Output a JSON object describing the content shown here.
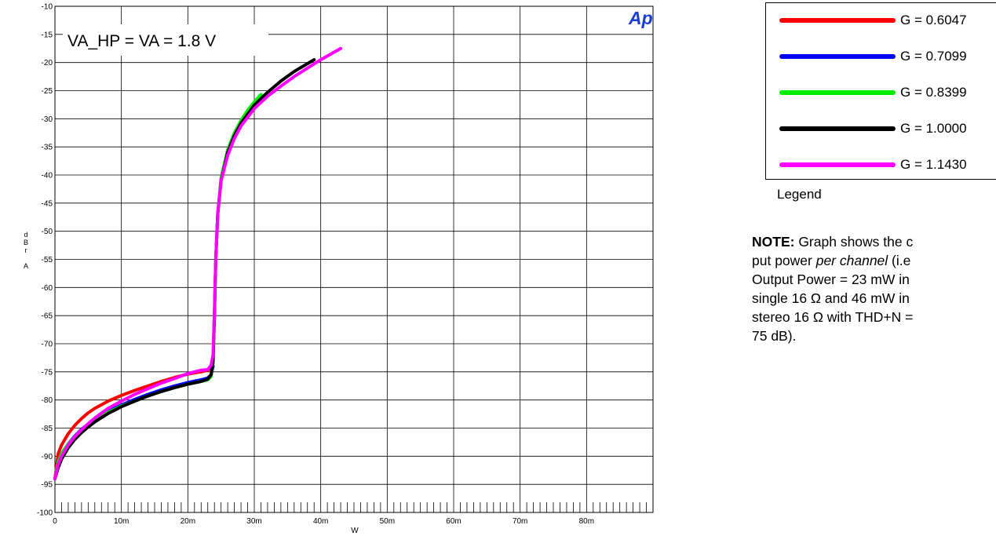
{
  "chart_data": {
    "type": "line",
    "title": "",
    "annotation": "VA_HP = VA = 1.8 V",
    "xlabel": "W",
    "ylabel": "dBr A",
    "ylabel_chars": [
      "d",
      "B",
      "r",
      "",
      "A"
    ],
    "xlim": [
      0,
      0.09
    ],
    "ylim": [
      -100,
      -10
    ],
    "x_ticks": [
      {
        "value": 0,
        "label": "0"
      },
      {
        "value": 0.01,
        "label": "10m"
      },
      {
        "value": 0.02,
        "label": "20m"
      },
      {
        "value": 0.03,
        "label": "30m"
      },
      {
        "value": 0.04,
        "label": "40m"
      },
      {
        "value": 0.05,
        "label": "50m"
      },
      {
        "value": 0.06,
        "label": "60m"
      },
      {
        "value": 0.07,
        "label": "70m"
      },
      {
        "value": 0.08,
        "label": "80m"
      }
    ],
    "y_ticks": [
      -10,
      -15,
      -20,
      -25,
      -30,
      -35,
      -40,
      -45,
      -50,
      -55,
      -60,
      -65,
      -70,
      -75,
      -80,
      -85,
      -90,
      -95,
      -100
    ],
    "grid": true,
    "logo": "Ap",
    "series": [
      {
        "name": "G = 0.6047",
        "color": "#ff0000",
        "x": [
          0,
          0.0005,
          0.001,
          0.002,
          0.003,
          0.004,
          0.005,
          0.006,
          0.008,
          0.01,
          0.012,
          0.014,
          0.016,
          0.018,
          0.02,
          0.022,
          0.023,
          0.0235,
          0.0238
        ],
        "y": [
          -94,
          -89.5,
          -88,
          -86,
          -84.5,
          -83.3,
          -82.3,
          -81.5,
          -80.2,
          -79.2,
          -78.3,
          -77.5,
          -76.7,
          -76.0,
          -75.4,
          -75.0,
          -74.7,
          -74.3,
          -73.5
        ]
      },
      {
        "name": "G = 0.7099",
        "color": "#0000ff",
        "x": [
          0,
          0.0005,
          0.001,
          0.002,
          0.003,
          0.004,
          0.005,
          0.006,
          0.008,
          0.01,
          0.012,
          0.014,
          0.016,
          0.018,
          0.02,
          0.022,
          0.023,
          0.0235,
          0.0238
        ],
        "y": [
          -94,
          -91,
          -89.5,
          -87.8,
          -86.4,
          -85.2,
          -84.3,
          -83.4,
          -82.0,
          -80.9,
          -79.9,
          -79.0,
          -78.2,
          -77.5,
          -76.9,
          -76.4,
          -76.1,
          -75.5,
          -74.0
        ]
      },
      {
        "name": "G = 0.8399",
        "color": "#00ee00",
        "x": [
          0,
          0.0005,
          0.001,
          0.002,
          0.003,
          0.004,
          0.005,
          0.006,
          0.008,
          0.01,
          0.012,
          0.014,
          0.016,
          0.018,
          0.02,
          0.022,
          0.023,
          0.0235,
          0.0238,
          0.024,
          0.0242,
          0.0245,
          0.025,
          0.026,
          0.027,
          0.028,
          0.029,
          0.03,
          0.031
        ],
        "y": [
          -94,
          -91,
          -89.5,
          -87.8,
          -86.5,
          -85.3,
          -84.4,
          -83.6,
          -82.2,
          -81.1,
          -80.2,
          -79.3,
          -78.5,
          -77.8,
          -77.2,
          -76.7,
          -76.4,
          -75.8,
          -73.0,
          -65.0,
          -55.0,
          -47.0,
          -40.5,
          -35.5,
          -32.5,
          -30.3,
          -28.5,
          -27.0,
          -25.7
        ]
      },
      {
        "name": "G = 1.0000",
        "color": "#000000",
        "x": [
          0,
          0.0005,
          0.001,
          0.002,
          0.003,
          0.004,
          0.005,
          0.006,
          0.008,
          0.01,
          0.012,
          0.014,
          0.016,
          0.018,
          0.02,
          0.022,
          0.023,
          0.0235,
          0.0238,
          0.024,
          0.0242,
          0.0245,
          0.025,
          0.026,
          0.027,
          0.028,
          0.03,
          0.032,
          0.034,
          0.036,
          0.039
        ],
        "y": [
          -94,
          -92,
          -90.5,
          -88.5,
          -87.0,
          -85.8,
          -84.8,
          -83.9,
          -82.4,
          -81.2,
          -80.2,
          -79.3,
          -78.5,
          -77.8,
          -77.2,
          -76.7,
          -76.3,
          -75.5,
          -73.0,
          -65.0,
          -55.0,
          -47.0,
          -41.0,
          -36.0,
          -33.0,
          -30.8,
          -27.6,
          -25.3,
          -23.3,
          -21.6,
          -19.5
        ]
      },
      {
        "name": "G = 1.1430",
        "color": "#ff00ff",
        "x": [
          0,
          0.0005,
          0.001,
          0.002,
          0.003,
          0.004,
          0.005,
          0.006,
          0.008,
          0.01,
          0.012,
          0.014,
          0.016,
          0.018,
          0.02,
          0.022,
          0.023,
          0.0235,
          0.0238,
          0.024,
          0.0242,
          0.0245,
          0.025,
          0.026,
          0.027,
          0.028,
          0.03,
          0.032,
          0.034,
          0.036,
          0.038,
          0.04,
          0.043
        ],
        "y": [
          -94,
          -91.5,
          -90,
          -88,
          -86.5,
          -85.3,
          -84.2,
          -83.2,
          -81.5,
          -80.2,
          -79.0,
          -78.0,
          -77.0,
          -76.2,
          -75.3,
          -74.7,
          -74.6,
          -73.8,
          -72.0,
          -64.0,
          -55.0,
          -47.0,
          -41.0,
          -36.5,
          -33.5,
          -31.3,
          -28.2,
          -26.0,
          -24.2,
          -22.5,
          -21.0,
          -19.5,
          -17.5
        ]
      }
    ]
  },
  "legend": {
    "items": [
      {
        "label": "G = 0.6047",
        "color": "#ff0000"
      },
      {
        "label": "G = 0.7099",
        "color": "#0000ff"
      },
      {
        "label": "G = 0.8399",
        "color": "#00ee00"
      },
      {
        "label": "G = 1.0000",
        "color": "#000000"
      },
      {
        "label": "G = 1.1430",
        "color": "#ff00ff"
      }
    ],
    "caption": "Legend"
  },
  "note": {
    "label": "NOTE:",
    "line1_after_label": " Graph shows the c",
    "line2_start": "put power ",
    "line2_italic": "per channel",
    "line2_end": " (i.e",
    "line3": "Output Power = 23 mW in",
    "line4": "single 16 Ω and 46 mW in",
    "line5": "stereo 16 Ω with THD+N =",
    "line6": "75 dB)."
  }
}
